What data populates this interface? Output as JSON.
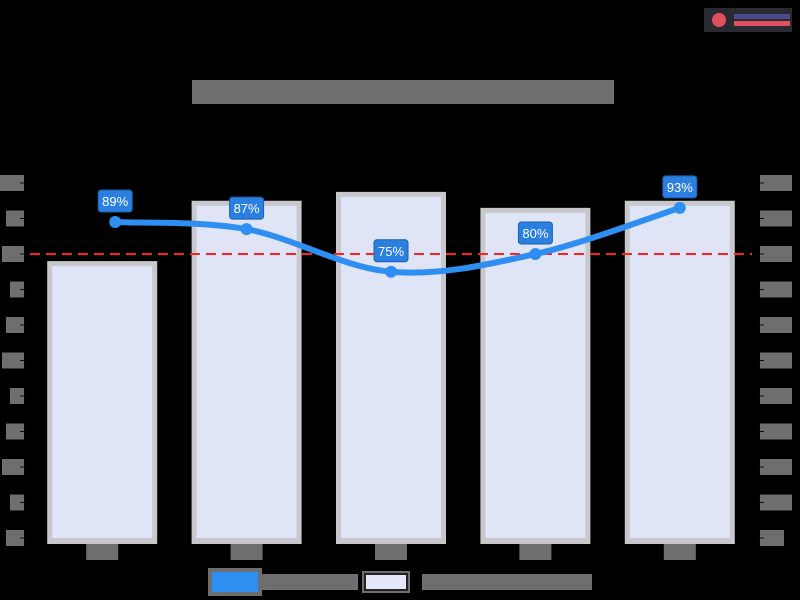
{
  "logo": {
    "name": "logo",
    "colors": {
      "mark": "#e0505f",
      "top": "#4a4a8a",
      "bottom": "#e0505f"
    }
  },
  "title": "Chart title (text obscured)",
  "legend": [
    {
      "label": "Line series (text obscured)",
      "color": "#2f8ef2"
    },
    {
      "label": "Bar series (text obscured)",
      "color": "#e4e8f8"
    }
  ],
  "colors": {
    "bar_fill": "#dfe5f7",
    "bar_border": "#c8c8cc",
    "line": "#2f8ef2",
    "label_bg": "#2a7fe0",
    "target": "#ff2020",
    "tick_label_bg": "#6e6e6e"
  },
  "chart_data": {
    "type": "bar+line",
    "title": "(obscured)",
    "categories": [
      "(obscured)",
      "(obscured)",
      "(obscured)",
      "(obscured)",
      "(obscured)"
    ],
    "series": [
      {
        "name": "Bar series (obscured)",
        "type": "bar",
        "axis": "right",
        "values_fraction_of_axis": [
          0.78,
          0.95,
          0.975,
          0.93,
          0.95
        ]
      },
      {
        "name": "Line series (obscured)",
        "type": "line",
        "axis": "left",
        "values": [
          89,
          87,
          75,
          80,
          93
        ],
        "labels": [
          "89%",
          "87%",
          "75%",
          "80%",
          "93%"
        ]
      }
    ],
    "target_line": {
      "value": 80,
      "style": "dashed",
      "color": "#ff2020"
    },
    "left_axis": {
      "ylim": [
        0,
        100
      ],
      "ticks": [
        100,
        90,
        80,
        70,
        60,
        50,
        40,
        30,
        20,
        10,
        0
      ],
      "tick_labels_obscured": true
    },
    "right_axis": {
      "tick_count": 11,
      "tick_labels_obscured": true
    },
    "grid": false,
    "legend_position": "bottom"
  }
}
